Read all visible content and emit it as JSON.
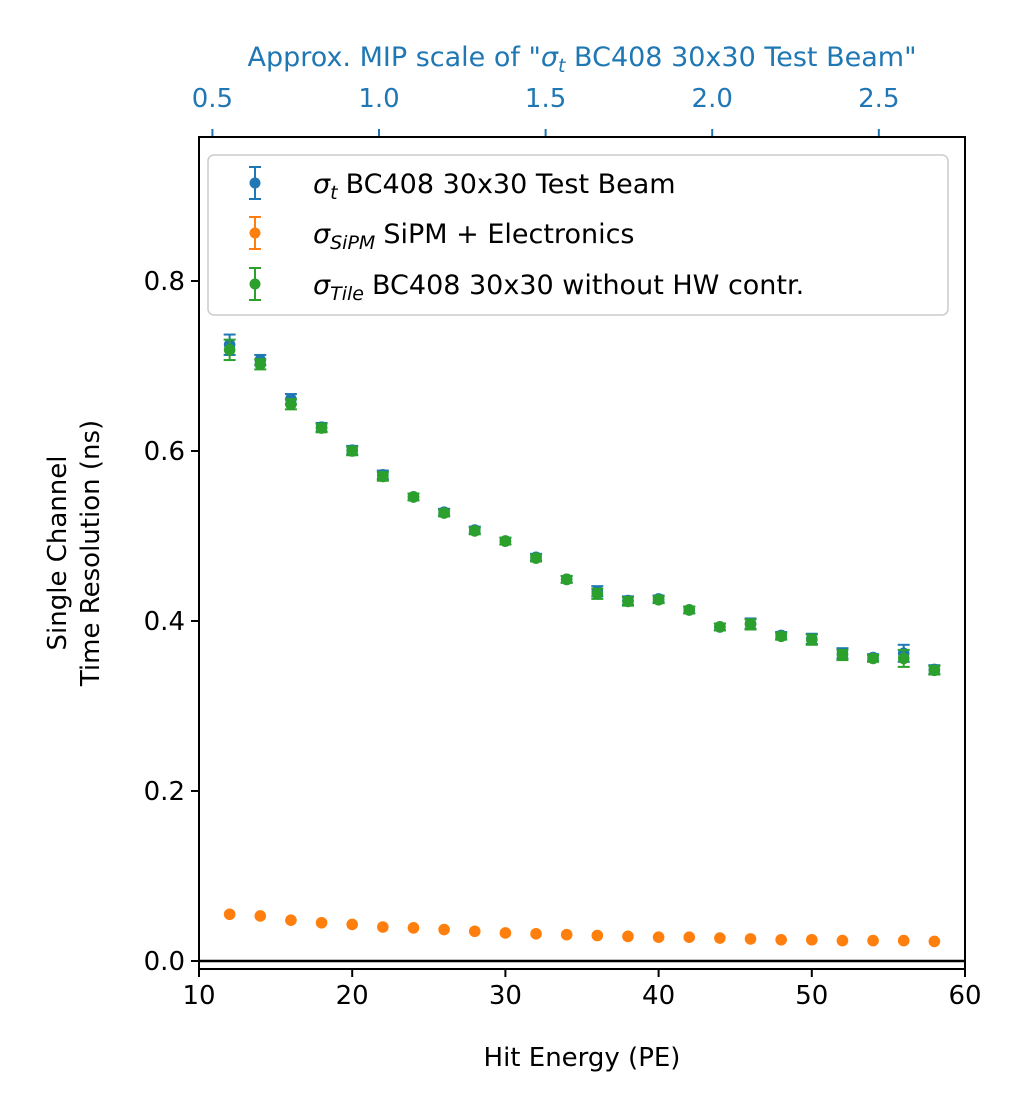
{
  "colors": {
    "test_beam": "#1f77b4",
    "sipm": "#ff7f0e",
    "tile": "#2ca02c",
    "top_axis": "#1f77b4",
    "axis": "#000000"
  },
  "chart_data": {
    "type": "scatter",
    "title": "",
    "xlabel": "Hit Energy (PE)",
    "ylabel_line1": "Single Channel",
    "ylabel_line2": "Time Resolution (ns)",
    "xlim": [
      10,
      60
    ],
    "ylim": [
      0,
      0.97
    ],
    "xticks": [
      10,
      20,
      30,
      40,
      50,
      60
    ],
    "xtick_labels": [
      "10",
      "20",
      "30",
      "40",
      "50",
      "60"
    ],
    "yticks": [
      0.0,
      0.2,
      0.4,
      0.6,
      0.8
    ],
    "ytick_labels": [
      "0.0",
      "0.2",
      "0.4",
      "0.6",
      "0.8"
    ],
    "top_axis": {
      "label_prefix": "Approx. MIP scale of \"",
      "label_symbol": "σ",
      "label_subscript": "t",
      "label_suffix": " BC408 30x30 Test Beam\"",
      "ticks": [
        0.5,
        1.0,
        1.5,
        2.0,
        2.5
      ],
      "tick_labels": [
        "0.5",
        "1.0",
        "1.5",
        "2.0",
        "2.5"
      ],
      "pe_per_mip": 21.75
    },
    "horizontal_line_y": 0.0,
    "legend_position": "top-right",
    "x": [
      12,
      14,
      16,
      18,
      20,
      22,
      24,
      26,
      28,
      30,
      32,
      34,
      36,
      38,
      40,
      42,
      44,
      46,
      48,
      50,
      52,
      54,
      56,
      58
    ],
    "series": [
      {
        "name": "BC408 30x30 Test Beam",
        "legend_symbol": "σ",
        "legend_subscript": "t",
        "color_key": "test_beam",
        "values": [
          0.725,
          0.707,
          0.661,
          0.628,
          0.601,
          0.572,
          0.546,
          0.528,
          0.507,
          0.494,
          0.475,
          0.449,
          0.435,
          0.424,
          0.426,
          0.413,
          0.393,
          0.397,
          0.383,
          0.379,
          0.362,
          0.357,
          0.362,
          0.343
        ],
        "errors": [
          0.012,
          0.006,
          0.006,
          0.005,
          0.005,
          0.005,
          0.004,
          0.004,
          0.004,
          0.004,
          0.004,
          0.004,
          0.006,
          0.005,
          0.004,
          0.004,
          0.004,
          0.006,
          0.004,
          0.006,
          0.006,
          0.004,
          0.01,
          0.005
        ]
      },
      {
        "name": "SiPM + Electronics",
        "legend_symbol": "σ",
        "legend_subscript": "SiPM",
        "color_key": "sipm",
        "values": [
          0.055,
          0.053,
          0.048,
          0.045,
          0.043,
          0.04,
          0.039,
          0.037,
          0.035,
          0.033,
          0.032,
          0.031,
          0.03,
          0.029,
          0.028,
          0.028,
          0.027,
          0.026,
          0.025,
          0.025,
          0.024,
          0.024,
          0.024,
          0.023
        ],
        "errors": [
          0,
          0,
          0,
          0,
          0,
          0,
          0,
          0,
          0,
          0,
          0,
          0,
          0,
          0,
          0,
          0,
          0,
          0,
          0,
          0,
          0,
          0,
          0,
          0
        ]
      },
      {
        "name": "BC408 30x30 without HW contr.",
        "legend_symbol": "σ",
        "legend_subscript": "Tile",
        "color_key": "tile",
        "values": [
          0.719,
          0.702,
          0.655,
          0.627,
          0.6,
          0.57,
          0.546,
          0.527,
          0.506,
          0.494,
          0.474,
          0.449,
          0.432,
          0.423,
          0.425,
          0.413,
          0.393,
          0.396,
          0.382,
          0.378,
          0.36,
          0.356,
          0.356,
          0.342
        ],
        "errors": [
          0.012,
          0.006,
          0.006,
          0.005,
          0.005,
          0.005,
          0.004,
          0.004,
          0.004,
          0.004,
          0.004,
          0.004,
          0.006,
          0.005,
          0.004,
          0.004,
          0.004,
          0.006,
          0.004,
          0.006,
          0.006,
          0.004,
          0.01,
          0.005
        ]
      }
    ]
  }
}
